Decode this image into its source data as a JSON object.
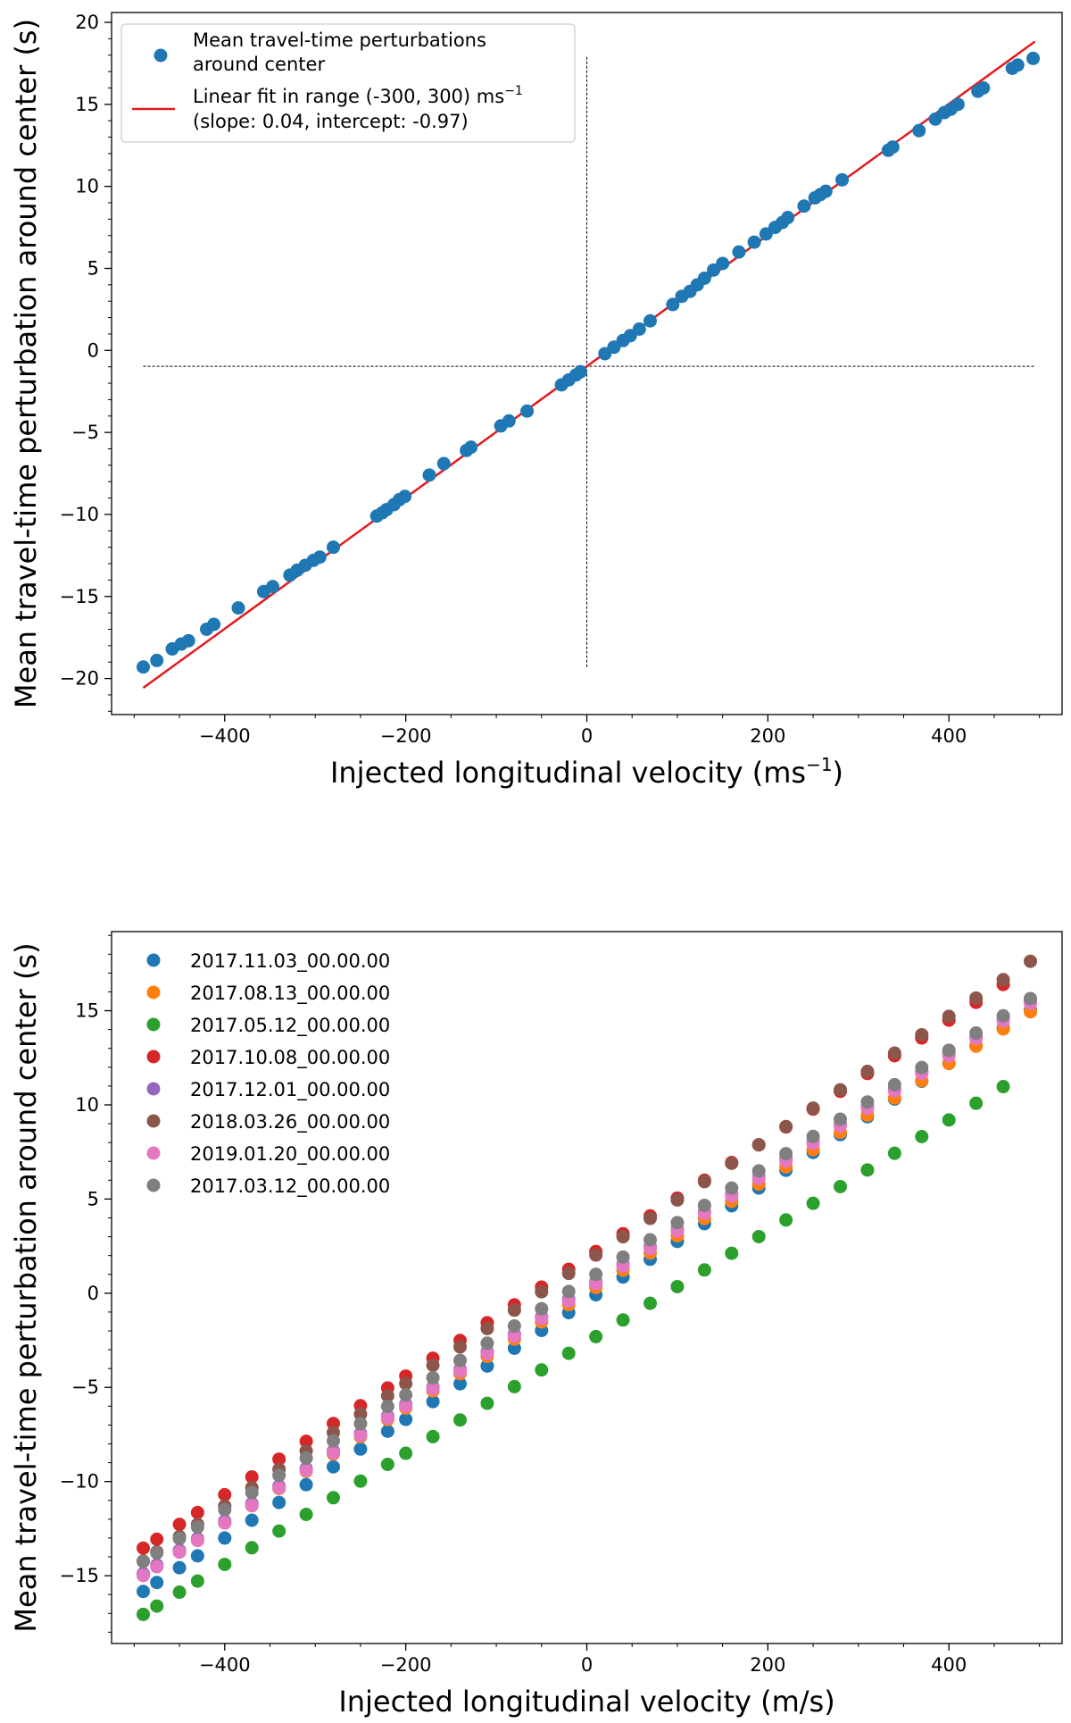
{
  "chart_data": [
    {
      "type": "scatter",
      "xlabel": "Injected longitudinal velocity (ms",
      "xlabel_sup": "−1",
      "xlabel_tail": ")",
      "ylabel": "Mean travel-time perturbation around center (s)",
      "xlim": [
        -525,
        525
      ],
      "ylim": [
        -22.2,
        20.6
      ],
      "xticks": [
        -400,
        -200,
        0,
        200,
        400
      ],
      "xtick_labels": [
        "−400",
        "−200",
        "0",
        "200",
        "400"
      ],
      "yticks": [
        -20,
        -15,
        -10,
        -5,
        0,
        5,
        10,
        15,
        20
      ],
      "ytick_labels": [
        "−20",
        "−15",
        "−10",
        "−5",
        "0",
        "5",
        "10",
        "15",
        "20"
      ],
      "legend_position": "upper-left",
      "reference_lines": {
        "horizontal_y": -0.97,
        "horizontal_x_range": [
          -490,
          495
        ],
        "vertical_x": 0,
        "vertical_y_range": [
          -19.3,
          17.9
        ]
      },
      "series": [
        {
          "name_line1": "Mean travel-time perturbations",
          "name_line2": "around center",
          "type": "scatter",
          "color": "#1f77b4",
          "points": [
            [
              -490,
              -19.3
            ],
            [
              -475,
              -18.9
            ],
            [
              -458,
              -18.2
            ],
            [
              -448,
              -17.9
            ],
            [
              -440,
              -17.7
            ],
            [
              -420,
              -17
            ],
            [
              -412,
              -16.7
            ],
            [
              -385,
              -15.7
            ],
            [
              -357,
              -14.7
            ],
            [
              -347,
              -14.4
            ],
            [
              -328,
              -13.7
            ],
            [
              -320,
              -13.4
            ],
            [
              -311,
              -13.1
            ],
            [
              -302,
              -12.8
            ],
            [
              -295,
              -12.6
            ],
            [
              -280,
              -12
            ],
            [
              -232,
              -10.1
            ],
            [
              -226,
              -9.9
            ],
            [
              -221,
              -9.7
            ],
            [
              -213,
              -9.4
            ],
            [
              -207,
              -9.1
            ],
            [
              -201,
              -8.9
            ],
            [
              -174,
              -7.6
            ],
            [
              -158,
              -6.9
            ],
            [
              -133,
              -6.1
            ],
            [
              -128,
              -5.9
            ],
            [
              -95,
              -4.6
            ],
            [
              -86,
              -4.3
            ],
            [
              -66,
              -3.7
            ],
            [
              -28,
              -2.1
            ],
            [
              -20,
              -1.8
            ],
            [
              -12,
              -1.5
            ],
            [
              -7,
              -1.3
            ],
            [
              20,
              -0.2
            ],
            [
              30,
              0.2
            ],
            [
              40,
              0.6
            ],
            [
              48,
              0.9
            ],
            [
              58,
              1.3
            ],
            [
              70,
              1.8
            ],
            [
              95,
              2.8
            ],
            [
              105,
              3.3
            ],
            [
              114,
              3.6
            ],
            [
              122,
              4
            ],
            [
              130,
              4.4
            ],
            [
              140,
              4.9
            ],
            [
              150,
              5.3
            ],
            [
              168,
              6
            ],
            [
              185,
              6.6
            ],
            [
              198,
              7.1
            ],
            [
              208,
              7.5
            ],
            [
              216,
              7.8
            ],
            [
              222,
              8.1
            ],
            [
              240,
              8.8
            ],
            [
              252,
              9.3
            ],
            [
              258,
              9.5
            ],
            [
              264,
              9.7
            ],
            [
              282,
              10.4
            ],
            [
              333,
              12.2
            ],
            [
              338,
              12.4
            ],
            [
              367,
              13.4
            ],
            [
              385,
              14.1
            ],
            [
              395,
              14.5
            ],
            [
              402,
              14.7
            ],
            [
              410,
              15
            ],
            [
              432,
              15.8
            ],
            [
              438,
              16
            ],
            [
              470,
              17.2
            ],
            [
              476,
              17.4
            ],
            [
              493,
              17.8
            ]
          ]
        },
        {
          "name_line1": "Linear fit in range (-300, 300) ms",
          "name_sup": "−1",
          "name_line2": "(slope: 0.04, intercept: -0.97)",
          "type": "line",
          "color": "#e31a1c",
          "x": [
            -490,
            495
          ],
          "y": [
            -20.57,
            18.83
          ]
        }
      ]
    },
    {
      "type": "scatter",
      "xlabel": "Injected longitudinal velocity (m/s)",
      "ylabel": "Mean travel-time perturbation around center (s)",
      "xlim": [
        -525,
        525
      ],
      "ylim": [
        -18.6,
        19.2
      ],
      "xticks": [
        -400,
        -200,
        0,
        200,
        400
      ],
      "xtick_labels": [
        "−400",
        "−200",
        "0",
        "200",
        "400"
      ],
      "yticks": [
        -15,
        -10,
        -5,
        0,
        5,
        10,
        15
      ],
      "ytick_labels": [
        "−15",
        "−10",
        "−5",
        "0",
        "5",
        "10",
        "15"
      ],
      "legend_position": "upper-left",
      "x_sample": [
        -490,
        -475,
        -450,
        -430,
        -400,
        -370,
        -340,
        -310,
        -280,
        -250,
        -220,
        -200,
        -170,
        -140,
        -110,
        -80,
        -50,
        -20,
        10,
        40,
        70,
        100,
        130,
        160,
        190,
        220,
        250,
        280,
        310,
        340,
        370,
        400,
        430,
        460,
        490
      ],
      "series": [
        {
          "name": "2017.11.03_00.00.00",
          "color": "#1f77b4",
          "slope": 0.0315,
          "intercept": -0.4,
          "x_range": [
            -495,
            490
          ]
        },
        {
          "name": "2017.08.13_00.00.00",
          "color": "#ff7f0e",
          "slope": 0.0305,
          "intercept": 0.0,
          "x_range": [
            -495,
            490
          ]
        },
        {
          "name": "2017.05.12_00.00.00",
          "color": "#2ca02c",
          "slope": 0.0295,
          "intercept": -2.6,
          "x_range": [
            -495,
            465
          ]
        },
        {
          "name": "2017.10.08_00.00.00",
          "color": "#d62728",
          "slope": 0.0315,
          "intercept": 1.9,
          "x_range": [
            -495,
            485
          ]
        },
        {
          "name": "2017.12.01_00.00.00",
          "color": "#9467bd",
          "slope": 0.031,
          "intercept": 0.3,
          "x_range": [
            -495,
            490
          ]
        },
        {
          "name": "2018.03.26_00.00.00",
          "color": "#8c564b",
          "slope": 0.0325,
          "intercept": 1.7,
          "x_range": [
            -495,
            490
          ]
        },
        {
          "name": "2019.01.20_00.00.00",
          "color": "#e377c2",
          "slope": 0.031,
          "intercept": 0.2,
          "x_range": [
            -495,
            490
          ]
        },
        {
          "name": "2017.03.12_00.00.00",
          "color": "#7f7f7f",
          "slope": 0.0305,
          "intercept": 0.7,
          "x_range": [
            -495,
            495
          ]
        }
      ]
    }
  ]
}
